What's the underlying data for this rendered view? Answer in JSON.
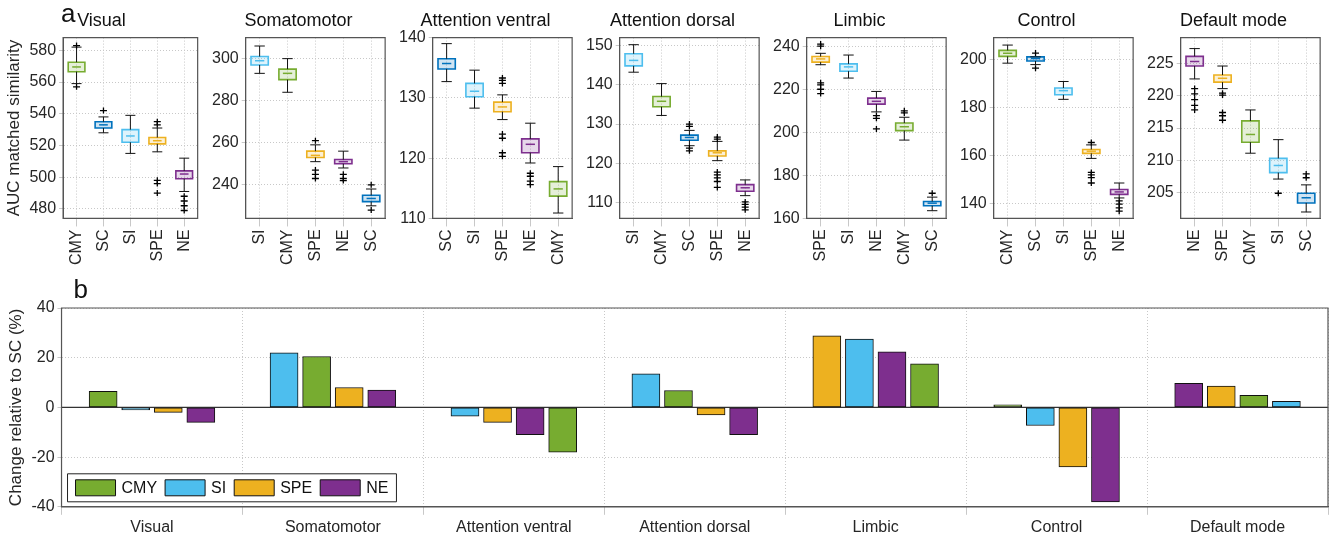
{
  "chart_data": [
    {
      "type": "box",
      "title": "Visual",
      "ylabel": "AUC matched similarity",
      "annotations": [
        "a"
      ],
      "categories": [
        "CMY",
        "SC",
        "SI",
        "SPE",
        "NE"
      ],
      "colors": [
        "#77ac30",
        "#0072bd",
        "#4dbeee",
        "#edb120",
        "#7e2f8e"
      ],
      "ylim": [
        474,
        588
      ],
      "yticks": [
        480,
        500,
        520,
        540,
        560,
        580
      ],
      "grid": true,
      "boxes": [
        {
          "low": 559,
          "q1": 566.5,
          "median": 569.5,
          "q3": 572.5,
          "high": 582,
          "outliers": [
            557,
            583
          ]
        },
        {
          "low": 528,
          "q1": 531,
          "median": 533,
          "q3": 535,
          "high": 538,
          "outliers": [
            542
          ]
        },
        {
          "low": 515,
          "q1": 522,
          "median": 526,
          "q3": 530,
          "high": 539
        },
        {
          "low": 516,
          "q1": 521,
          "median": 523,
          "q3": 525,
          "high": 531,
          "outliers": [
            533,
            535,
            498,
            496,
            490
          ]
        },
        {
          "low": 491,
          "q1": 499,
          "median": 502,
          "q3": 504,
          "high": 512,
          "outliers": [
            488,
            485,
            482,
            479
          ]
        }
      ]
    },
    {
      "type": "box",
      "title": "Somatomotor",
      "categories": [
        "SI",
        "CMY",
        "SPE",
        "NE",
        "SC"
      ],
      "colors": [
        "#4dbeee",
        "#77ac30",
        "#edb120",
        "#7e2f8e",
        "#0072bd"
      ],
      "ylim": [
        224,
        310
      ],
      "yticks": [
        240,
        260,
        280,
        300
      ],
      "grid": true,
      "boxes": [
        {
          "low": 293,
          "q1": 297,
          "median": 299,
          "q3": 301,
          "high": 306
        },
        {
          "low": 284,
          "q1": 290,
          "median": 293,
          "q3": 295,
          "high": 300
        },
        {
          "low": 251,
          "q1": 253,
          "median": 254,
          "q3": 256,
          "high": 259,
          "outliers": [
            261,
            247,
            245,
            243
          ]
        },
        {
          "low": 248,
          "q1": 250,
          "median": 251,
          "q3": 252,
          "high": 256,
          "outliers": [
            245,
            243,
            242
          ]
        },
        {
          "low": 230,
          "q1": 232,
          "median": 233.5,
          "q3": 235,
          "high": 238,
          "outliers": [
            240,
            228
          ]
        }
      ]
    },
    {
      "type": "box",
      "title": "Attention ventral",
      "categories": [
        "SC",
        "SI",
        "SPE",
        "NE",
        "CMY"
      ],
      "colors": [
        "#0072bd",
        "#4dbeee",
        "#edb120",
        "#7e2f8e",
        "#77ac30"
      ],
      "ylim": [
        110,
        140
      ],
      "yticks": [
        110,
        120,
        130,
        140
      ],
      "grid": true,
      "boxes": [
        {
          "low": 132.7,
          "q1": 134.8,
          "median": 135.7,
          "q3": 136.5,
          "high": 139
        },
        {
          "low": 128.3,
          "q1": 130.2,
          "median": 131.1,
          "q3": 132.4,
          "high": 134.6
        },
        {
          "low": 126.4,
          "q1": 127.7,
          "median": 128.5,
          "q3": 129.3,
          "high": 130.5,
          "outliers": [
            133.3,
            132.9,
            132.4,
            124,
            123.3,
            120.9,
            120.3
          ]
        },
        {
          "low": 119.2,
          "q1": 120.9,
          "median": 122.3,
          "q3": 123.2,
          "high": 125.8,
          "outliers": [
            117.5,
            117,
            116.2,
            115.6
          ]
        },
        {
          "low": 110.9,
          "q1": 113.7,
          "median": 114.9,
          "q3": 116.1,
          "high": 118.6
        }
      ]
    },
    {
      "type": "box",
      "title": "Attention dorsal",
      "categories": [
        "SI",
        "CMY",
        "SC",
        "SPE",
        "NE"
      ],
      "colors": [
        "#4dbeee",
        "#77ac30",
        "#0072bd",
        "#edb120",
        "#7e2f8e"
      ],
      "ylim": [
        106,
        152
      ],
      "yticks": [
        110,
        120,
        130,
        140,
        150
      ],
      "grid": true,
      "boxes": [
        {
          "low": 143.2,
          "q1": 144.8,
          "median": 146.2,
          "q3": 147.9,
          "high": 150.2
        },
        {
          "low": 132.2,
          "q1": 134.4,
          "median": 135.8,
          "q3": 137,
          "high": 140.3
        },
        {
          "low": 124.5,
          "q1": 125.9,
          "median": 126.6,
          "q3": 127.2,
          "high": 128.4,
          "outliers": [
            130,
            129.4,
            123.9,
            123.2
          ]
        },
        {
          "low": 120.7,
          "q1": 121.9,
          "median": 122.7,
          "q3": 123.2,
          "high": 125.6,
          "outliers": [
            126.7,
            126.2,
            117.8,
            117.1,
            116.3,
            115.4,
            113.9
          ]
        },
        {
          "low": 111.8,
          "q1": 112.9,
          "median": 113.8,
          "q3": 114.6,
          "high": 115.8,
          "outliers": [
            110.2,
            109.6,
            108.9,
            108.2
          ]
        }
      ]
    },
    {
      "type": "box",
      "title": "Limbic",
      "categories": [
        "SPE",
        "SI",
        "NE",
        "CMY",
        "SC"
      ],
      "colors": [
        "#edb120",
        "#4dbeee",
        "#7e2f8e",
        "#77ac30",
        "#0072bd"
      ],
      "ylim": [
        160,
        244
      ],
      "yticks": [
        160,
        180,
        200,
        220,
        240
      ],
      "grid": true,
      "boxes": [
        {
          "low": 231.4,
          "q1": 232.6,
          "median": 234.1,
          "q3": 235.2,
          "high": 236.7,
          "outliers": [
            241,
            240,
            223,
            222,
            220,
            218
          ]
        },
        {
          "low": 225.2,
          "q1": 228.4,
          "median": 230.4,
          "q3": 231.8,
          "high": 235.9
        },
        {
          "low": 209.5,
          "q1": 213.1,
          "median": 214.4,
          "q3": 215.9,
          "high": 219,
          "outliers": [
            207.8,
            206.5,
            201.6
          ]
        },
        {
          "low": 196.4,
          "q1": 200.8,
          "median": 202.6,
          "q3": 204.3,
          "high": 207,
          "outliers": [
            210,
            209
          ]
        },
        {
          "low": 163.6,
          "q1": 165.9,
          "median": 167.1,
          "q3": 167.9,
          "high": 169.9,
          "outliers": [
            171.7
          ]
        }
      ]
    },
    {
      "type": "box",
      "title": "Control",
      "categories": [
        "CMY",
        "SC",
        "SI",
        "SPE",
        "NE"
      ],
      "colors": [
        "#77ac30",
        "#0072bd",
        "#4dbeee",
        "#edb120",
        "#7e2f8e"
      ],
      "ylim": [
        134,
        209
      ],
      "yticks": [
        140,
        160,
        180,
        200
      ],
      "grid": true,
      "boxes": [
        {
          "low": 198.4,
          "q1": 201.2,
          "median": 202.5,
          "q3": 203.7,
          "high": 205.9
        },
        {
          "low": 197.8,
          "q1": 199.3,
          "median": 200.3,
          "q3": 201,
          "high": 201,
          "outliers": [
            202.6,
            196.3
          ]
        },
        {
          "low": 183.4,
          "q1": 185.3,
          "median": 187,
          "q3": 188.1,
          "high": 190.8
        },
        {
          "low": 158.9,
          "q1": 161,
          "median": 161.9,
          "q3": 162.6,
          "high": 164.5,
          "outliers": [
            165.5,
            153.1,
            152.1,
            150.9,
            148.7
          ]
        },
        {
          "low": 142.5,
          "q1": 144,
          "median": 145,
          "q3": 146,
          "high": 148.7,
          "outliers": [
            141.3,
            139.9,
            138.4,
            137
          ]
        }
      ]
    },
    {
      "type": "box",
      "title": "Default mode",
      "categories": [
        "NE",
        "SPE",
        "CMY",
        "SI",
        "SC"
      ],
      "colors": [
        "#7e2f8e",
        "#edb120",
        "#77ac30",
        "#4dbeee",
        "#0072bd"
      ],
      "ylim": [
        201,
        229
      ],
      "yticks": [
        205,
        210,
        215,
        220,
        225
      ],
      "grid": true,
      "boxes": [
        {
          "low": 222.6,
          "q1": 224.6,
          "median": 225.3,
          "q3": 226.1,
          "high": 227.3,
          "outliers": [
            221.1,
            220.3,
            219.4,
            218.5,
            217.8
          ]
        },
        {
          "low": 221.1,
          "q1": 222.1,
          "median": 222.7,
          "q3": 223.2,
          "high": 224.6,
          "outliers": [
            220.4,
            220.1,
            217.4,
            216.9,
            216.2
          ]
        },
        {
          "low": 211.1,
          "q1": 212.8,
          "median": 214,
          "q3": 216.1,
          "high": 217.8
        },
        {
          "low": 207.1,
          "q1": 208.1,
          "median": 209.2,
          "q3": 210.3,
          "high": 213.2,
          "outliers": [
            204.9
          ]
        },
        {
          "low": 202,
          "q1": 203.4,
          "median": 204.2,
          "q3": 204.9,
          "high": 206.2,
          "outliers": [
            207.9,
            207.3
          ]
        }
      ]
    },
    {
      "type": "bar",
      "ylabel": "Change relative to SC (%)",
      "annotations": [
        "b"
      ],
      "categories": [
        "Visual",
        "Somatomotor",
        "Attention ventral",
        "Attention dorsal",
        "Limbic",
        "Control",
        "Default mode"
      ],
      "ylim": [
        -40,
        40
      ],
      "yticks": [
        -40,
        -20,
        0,
        20,
        40
      ],
      "grid": true,
      "legend": "bottom left",
      "series": [
        {
          "name": "CMY",
          "color": "#77ac30",
          "values": [
            6.5,
            20.5,
            -18,
            6.8,
            17.5,
            1,
            4.9
          ]
        },
        {
          "name": "SI",
          "color": "#4dbeee",
          "values": [
            -1,
            22,
            -3.5,
            13.5,
            27.5,
            -7.3,
            2.4
          ]
        },
        {
          "name": "SPE",
          "color": "#edb120",
          "values": [
            -2,
            8,
            -6,
            -3,
            28.8,
            -24,
            8.6
          ]
        },
        {
          "name": "NE",
          "color": "#7e2f8e",
          "values": [
            -6,
            7,
            -11,
            -11,
            22.4,
            -38,
            9.7
          ]
        }
      ]
    }
  ]
}
